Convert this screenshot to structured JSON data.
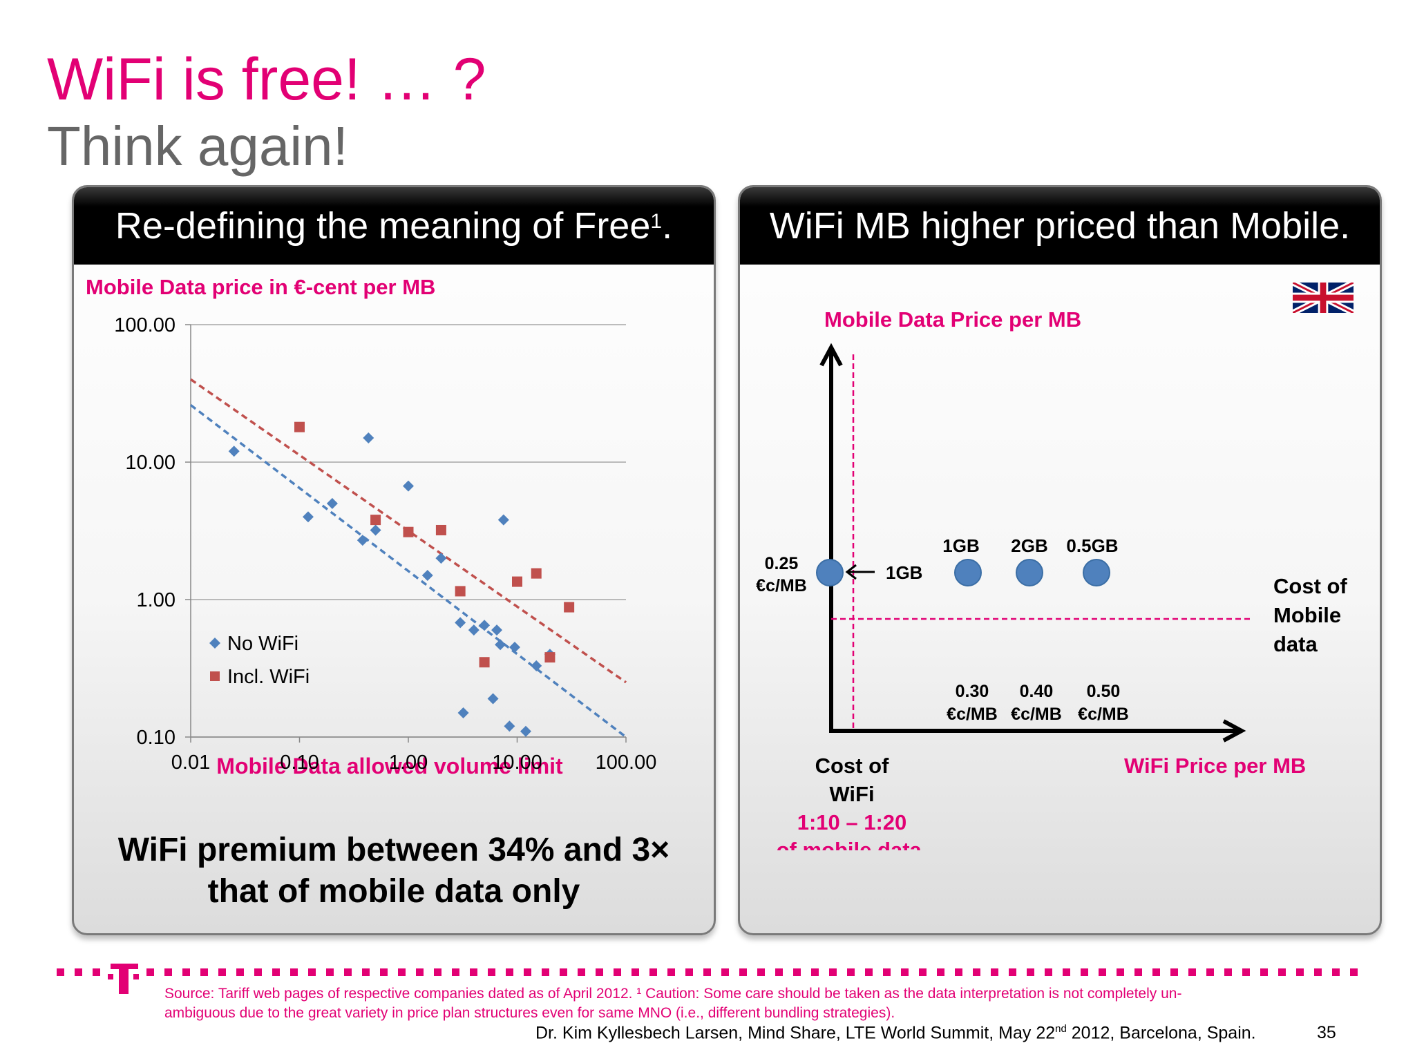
{
  "slide": {
    "title": "WiFi is free! … ?",
    "subtitle": "Think again!",
    "page_number": "35"
  },
  "left_panel": {
    "header": "Re-defining the meaning of Free",
    "header_sup": "1",
    "header_end": ".",
    "conclusion_line1": "WiFi premium between 34% and 3×",
    "conclusion_line2": "that of mobile data only"
  },
  "right_panel": {
    "header": "WiFi MB higher priced than Mobile.",
    "flag": "uk-flag-icon",
    "y_axis_label": "Mobile Data Price per MB",
    "x_axis_label": "WiFi Price per MB",
    "mobile_cost_label": [
      "Cost of",
      "Mobile",
      "data"
    ],
    "wifi_cost_label": [
      "Cost of",
      "WiFi"
    ],
    "ratio_label": [
      "1:10 – 1:20",
      "of mobile data."
    ],
    "axis_point_price": [
      "0.25",
      "€c/MB"
    ],
    "axis_point_arrow_label": "1GB",
    "bubbles": [
      {
        "label": "1GB",
        "price": [
          "0.30",
          "€c/MB"
        ]
      },
      {
        "label": "2GB",
        "price": [
          "0.40",
          "€c/MB"
        ]
      },
      {
        "label": "0.5GB",
        "price": [
          "0.50",
          "€c/MB"
        ]
      }
    ]
  },
  "footer": {
    "source": "Source: Tariff web pages of respective companies dated as of April 2012.",
    "caution": "¹ Caution: Some care should be taken as the data interpretation is not completely un-",
    "caution2": "ambiguous due to the great variety in price plan structures even for same MNO (i.e., different bundling strategies).",
    "credit_pre": "Dr. Kim Kyllesbech Larsen, Mind Share, LTE World Summit, May 22",
    "credit_sup": "nd",
    "credit_post": " 2012, Barcelona, Spain."
  },
  "colors": {
    "accent": "#e20074",
    "no_wifi": "#4f81bd",
    "incl_wifi": "#c0504d",
    "title_gray": "#666666"
  },
  "chart_data": {
    "type": "scatter",
    "title": "Mobile Data price in €-cent per MB",
    "xlabel": "Mobile Data allowed volume limit",
    "ylabel": "Mobile Data price in €-cent per MB",
    "x_scale": "log",
    "y_scale": "log",
    "xlim": [
      0.01,
      100
    ],
    "ylim": [
      0.1,
      100
    ],
    "x_ticks": [
      "0.01",
      "0.10",
      "1.00",
      "10.00",
      "100.00"
    ],
    "y_ticks": [
      "0.10",
      "1.00",
      "10.00",
      "100.00"
    ],
    "grid": "horizontal",
    "legend_position": "bottom-left",
    "series": [
      {
        "name": "No WiFi",
        "marker": "diamond",
        "color": "#4f81bd",
        "points": [
          [
            0.025,
            12
          ],
          [
            0.12,
            4
          ],
          [
            0.2,
            5
          ],
          [
            0.38,
            2.7
          ],
          [
            0.43,
            15
          ],
          [
            0.5,
            3.2
          ],
          [
            1.0,
            6.7
          ],
          [
            1.5,
            1.5
          ],
          [
            2.0,
            2.0
          ],
          [
            3.0,
            0.68
          ],
          [
            3.2,
            0.15
          ],
          [
            4.0,
            0.6
          ],
          [
            5.0,
            0.65
          ],
          [
            6.0,
            0.19
          ],
          [
            6.5,
            0.6
          ],
          [
            7.0,
            0.47
          ],
          [
            7.5,
            3.8
          ],
          [
            8.5,
            0.12
          ],
          [
            9.5,
            0.45
          ],
          [
            12,
            0.11
          ],
          [
            15,
            0.33
          ],
          [
            20,
            0.4
          ]
        ],
        "trend": [
          [
            0.01,
            26
          ],
          [
            100,
            0.1
          ]
        ]
      },
      {
        "name": "Incl. WiFi",
        "marker": "square",
        "color": "#c0504d",
        "points": [
          [
            0.1,
            18
          ],
          [
            0.5,
            3.8
          ],
          [
            1.0,
            3.1
          ],
          [
            2.0,
            3.2
          ],
          [
            3.0,
            1.15
          ],
          [
            5.0,
            0.35
          ],
          [
            10,
            1.35
          ],
          [
            15,
            1.55
          ],
          [
            20,
            0.38
          ],
          [
            30,
            0.88
          ]
        ],
        "trend": [
          [
            0.01,
            40
          ],
          [
            100,
            0.25
          ]
        ]
      }
    ]
  }
}
